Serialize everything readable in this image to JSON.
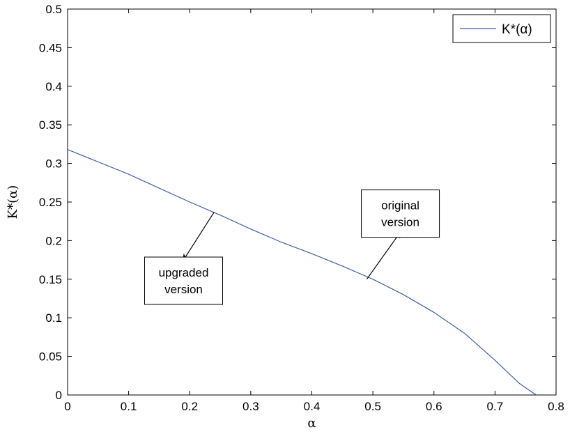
{
  "chart_data": {
    "type": "line",
    "title": "",
    "xlabel": "α",
    "ylabel": "K*(α)",
    "xlim": [
      0,
      0.8
    ],
    "ylim": [
      0,
      0.5
    ],
    "xticks": [
      "0",
      "0.1",
      "0.2",
      "0.3",
      "0.4",
      "0.5",
      "0.6",
      "0.7",
      "0.8"
    ],
    "yticks": [
      "0",
      "0.05",
      "0.1",
      "0.15",
      "0.2",
      "0.25",
      "0.3",
      "0.35",
      "0.4",
      "0.45",
      "0.5"
    ],
    "grid": false,
    "legend_position": "top-right",
    "series": [
      {
        "name": "K*(α)",
        "color": "#3b5fa8",
        "x": [
          0,
          0.05,
          0.1,
          0.15,
          0.2,
          0.25,
          0.3,
          0.35,
          0.4,
          0.45,
          0.5,
          0.55,
          0.6,
          0.65,
          0.7,
          0.72,
          0.74,
          0.76,
          0.768
        ],
        "y": [
          0.318,
          0.302,
          0.286,
          0.268,
          0.25,
          0.233,
          0.215,
          0.198,
          0.183,
          0.167,
          0.15,
          0.13,
          0.107,
          0.08,
          0.045,
          0.03,
          0.015,
          0.004,
          0.0
        ]
      }
    ],
    "annotations": [
      {
        "lines": [
          "upgraded",
          "version"
        ],
        "arrow_from": [
          0.24,
          0.237
        ],
        "arrow_to": [
          0.19,
          0.175
        ],
        "box_center": [
          0.19,
          0.148
        ]
      },
      {
        "lines": [
          "original",
          "version"
        ],
        "arrow_from": [
          0.49,
          0.15
        ],
        "arrow_to": [
          0.545,
          0.211
        ],
        "box_center": [
          0.545,
          0.235
        ]
      }
    ]
  }
}
